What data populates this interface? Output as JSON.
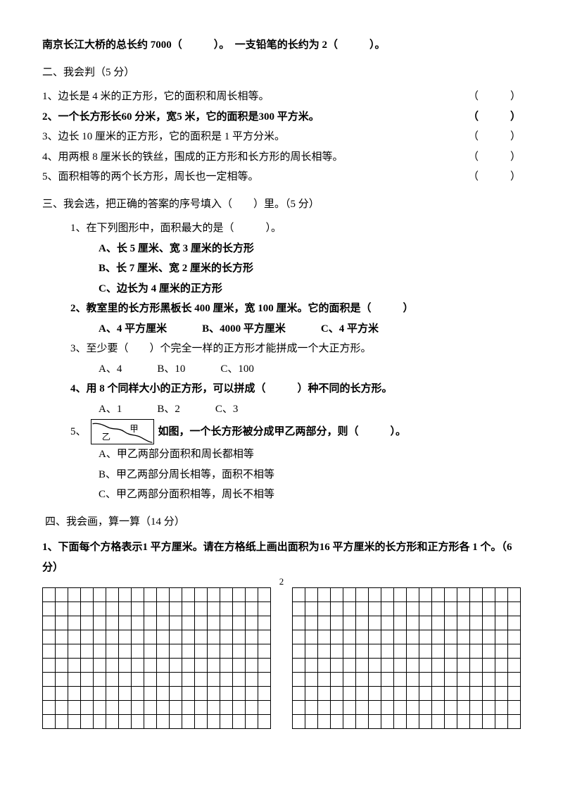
{
  "intro_line": "南京长江大桥的总长约 7000（　　　）。　一支铅笔的长约为 2（　　　）。",
  "section2": {
    "title": "二、我会判（5 分）",
    "items": [
      "1、边长是 4 米的正方形，它的面积和周长相等。",
      "2、一个长方形长60 分米，宽5 米，它的面积是300 平方米。",
      "3、边长 10 厘米的正方形，它的面积是 1 平方分米。",
      "4、用两根 8 厘米长的铁丝，围成的正方形和长方形的周长相等。",
      "5、面积相等的两个长方形，周长也一定相等。"
    ],
    "bracket": "（　　　）"
  },
  "section3": {
    "title": "三、我会选，把正确的答案的序号填入（　　）里。（5 分）",
    "q1": {
      "stem": "1、在下列图形中，面积最大的是（　　　）。",
      "opts": [
        "A、长 5 厘米、宽 3 厘米的长方形",
        "B、长 7 厘米、宽 2 厘米的长方形",
        "C、边长为 4 厘米的正方形"
      ]
    },
    "q2": {
      "stem": "2、教室里的长方形黑板长 400 厘米，宽 100 厘米。它的面积是（　　　）",
      "opts": [
        "A、4 平方厘米",
        "B、4000 平方厘米",
        "C、4 平方米"
      ]
    },
    "q3": {
      "stem": "3、至少要（　　）个完全一样的正方形才能拼成一个大正方形。",
      "opts": [
        "A、4",
        "B、10",
        "C、100"
      ]
    },
    "q4": {
      "stem": "4、用 8 个同样大小的正方形，可以拼成（　　　）种不同的长方形。",
      "opts": [
        "A、1",
        "B、2",
        "C、3"
      ]
    },
    "q5": {
      "prefix": "5、",
      "stem": "如图，一个长方形被分成甲乙两部分，则（　　　）。",
      "label_jia": "甲",
      "label_yi": "乙",
      "opts": [
        "A、甲乙两部分面积和周长都相等",
        "B、甲乙两部分周长相等，面积不相等",
        "C、甲乙两部分面积相等，周长不相等"
      ]
    }
  },
  "section4": {
    "title": "四、我会画，算一算（14 分）",
    "q1": "1、下面每个方格表示1 平方厘米。请在方格纸上画出面积为16 平方厘米的长方形和正方形各 1 个。（6 分）"
  },
  "grid": {
    "rows": 10,
    "cols": 18
  },
  "page_number": "2"
}
